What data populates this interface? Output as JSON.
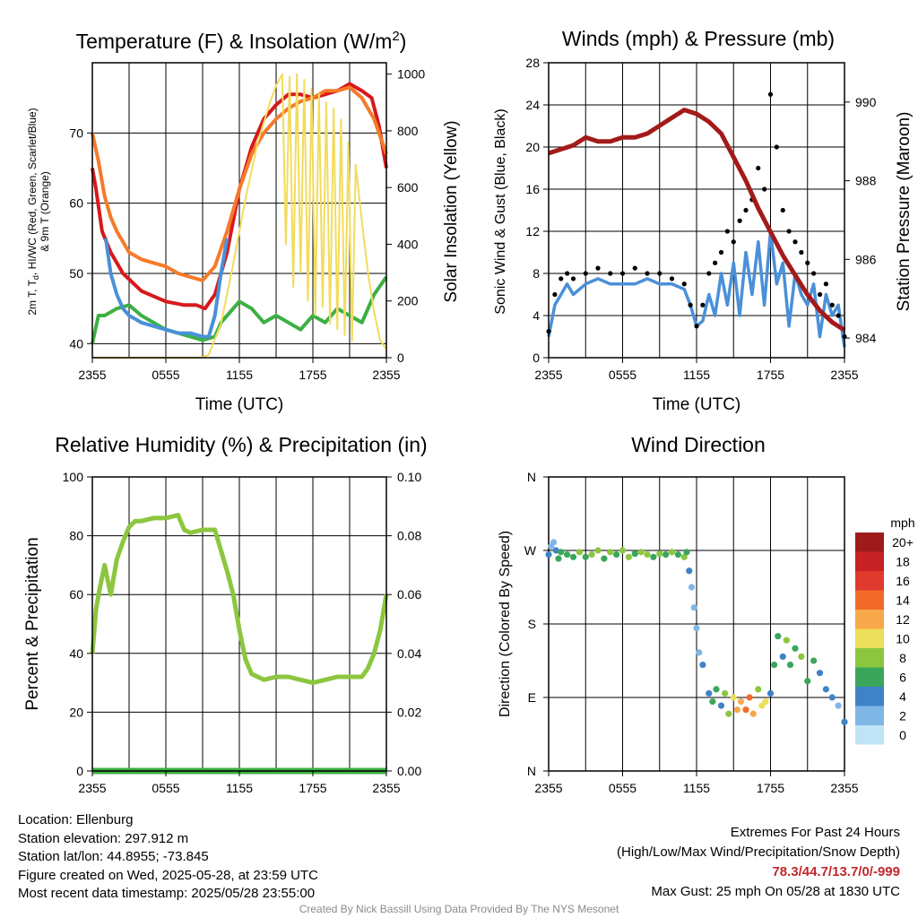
{
  "chart_data": [
    {
      "type": "line",
      "title": "Temperature (F) & Insolation (W/m²)",
      "title_main": "Temperature (F) & Insolation (W/m",
      "title_sup": "2",
      "title_end": ")",
      "xlabel": "Time (UTC)",
      "ylabel_left_line1": "2m T, T",
      "ylabel_left_sub": "d",
      "ylabel_left_line1_end": ", HI/WC (Red, Green, Scarlet/Blue)",
      "ylabel_left_line2": "& 9m T (Orange)",
      "ylabel_right": "Solar Insolation (Yellow)",
      "x_ticks": [
        "2355",
        "0555",
        "1155",
        "1755",
        "2355"
      ],
      "y_left_ticks": [
        "40",
        "50",
        "60",
        "70"
      ],
      "y_right_ticks": [
        "0",
        "200",
        "400",
        "600",
        "800",
        "1000"
      ],
      "ylim_left": [
        38,
        80
      ],
      "ylim_right": [
        0,
        1040
      ],
      "series": [
        {
          "name": "2m T (Red)",
          "color": "#d7191c",
          "x": [
            0,
            0.3,
            0.8,
            1.5,
            2.5,
            4,
            6,
            7.5,
            8.5,
            9.2,
            10,
            11,
            12,
            13,
            14,
            15,
            16,
            17,
            18,
            19,
            20,
            21,
            22,
            22.8,
            23.4,
            24
          ],
          "y": [
            65,
            62,
            56,
            53,
            50,
            47.5,
            46,
            45.5,
            45.5,
            45,
            47,
            53,
            62,
            68,
            72,
            74,
            75.5,
            75.5,
            75,
            75.5,
            76,
            77,
            76,
            75,
            71,
            65
          ]
        },
        {
          "name": "9m T (Orange)",
          "color": "#f47b2a",
          "x": [
            0,
            0.5,
            1,
            1.5,
            2,
            3,
            4,
            5,
            6,
            7,
            8,
            9,
            10,
            11,
            12,
            13,
            14,
            15,
            16,
            17,
            18,
            19,
            20,
            21,
            22,
            23,
            24
          ],
          "y": [
            70,
            66,
            61,
            58,
            56,
            53,
            52,
            51.5,
            51,
            50,
            49.5,
            49,
            51,
            56,
            62,
            67,
            70,
            72,
            73.5,
            74.5,
            75,
            76,
            76,
            76.5,
            75,
            72,
            67
          ]
        },
        {
          "name": "Td (Green)",
          "color": "#3cb043",
          "x": [
            0,
            0.5,
            1,
            2,
            3,
            4,
            5,
            6,
            7,
            8,
            9,
            10,
            10.5,
            11,
            12,
            13,
            14,
            15,
            16,
            17,
            18,
            19,
            20,
            21,
            22,
            23,
            24
          ],
          "y": [
            40,
            44,
            44,
            45,
            45.5,
            44,
            43,
            42,
            41.5,
            41,
            40.5,
            41,
            43,
            44,
            46,
            45,
            43,
            44,
            43,
            42,
            44,
            43,
            45,
            44,
            43,
            47,
            49.5
          ]
        },
        {
          "name": "HI/WC (Blue)",
          "color": "#4a90d9",
          "x": [
            1.1,
            1.5,
            2,
            2.5,
            3,
            4,
            5,
            6,
            7,
            8,
            9,
            9.5,
            10,
            10.5,
            11
          ],
          "y": [
            55,
            50,
            47,
            45,
            44,
            43,
            42.5,
            42,
            41.5,
            41.5,
            41,
            41,
            44,
            50,
            55
          ]
        },
        {
          "name": "Solar Insolation (Yellow)",
          "color": "#f2dc5d",
          "axis": "right",
          "x": [
            0,
            1,
            2,
            3,
            4,
            5,
            6,
            7,
            8,
            8.8,
            9.5,
            10.5,
            11.5,
            12.5,
            13.5,
            14.5,
            15,
            15.5,
            15.8,
            16.1,
            16.4,
            16.7,
            17,
            17.3,
            17.6,
            17.9,
            18.2,
            18.5,
            18.8,
            19.1,
            19.4,
            19.7,
            20,
            20.3,
            20.6,
            20.9,
            21.2,
            21.5,
            22,
            22.5,
            23,
            23.5,
            24
          ],
          "y": [
            0,
            0,
            0,
            0,
            0,
            0,
            0,
            0,
            0,
            0,
            10,
            120,
            330,
            560,
            760,
            900,
            960,
            1000,
            400,
            990,
            250,
            1000,
            300,
            980,
            200,
            950,
            150,
            930,
            180,
            900,
            120,
            880,
            100,
            840,
            80,
            760,
            60,
            680,
            480,
            300,
            160,
            60,
            30
          ]
        }
      ]
    },
    {
      "type": "line",
      "title": "Winds (mph) & Pressure (mb)",
      "xlabel": "Time (UTC)",
      "ylabel_left": "Sonic Wind & Gust (Blue, Black)",
      "ylabel_right": "Station Pressure (Maroon)",
      "x_ticks": [
        "2355",
        "0555",
        "1155",
        "1755",
        "2355"
      ],
      "y_left_ticks": [
        "0",
        "4",
        "8",
        "12",
        "16",
        "20",
        "24",
        "28"
      ],
      "y_right_ticks": [
        "984",
        "986",
        "988",
        "990"
      ],
      "ylim_left": [
        0,
        28
      ],
      "ylim_right": [
        983.5,
        991
      ],
      "series": [
        {
          "name": "Sonic Wind (Blue)",
          "color": "#4a90d9",
          "x": [
            0,
            0.5,
            1,
            1.5,
            2,
            3,
            4,
            5,
            6,
            7,
            8,
            9,
            10,
            11,
            11.5,
            12,
            12.5,
            13,
            13.5,
            14,
            14.5,
            15,
            15.5,
            16,
            16.5,
            17,
            17.5,
            18,
            18.5,
            19,
            19.5,
            20,
            20.5,
            21,
            21.5,
            22,
            22.5,
            23,
            23.5,
            24
          ],
          "y": [
            2,
            5,
            6,
            7,
            6,
            7,
            7.5,
            7,
            7,
            7,
            7.5,
            7,
            7,
            6.5,
            5,
            3,
            3.5,
            6,
            4,
            8,
            5,
            9,
            4,
            10,
            6,
            11,
            5,
            12,
            7,
            9,
            3,
            8,
            6,
            5,
            7,
            2,
            6,
            4,
            5,
            1
          ]
        },
        {
          "name": "Gust (Black)",
          "color": "#000000",
          "x": [
            0,
            0.5,
            1,
            1.5,
            2,
            3,
            4,
            5,
            6,
            7,
            8,
            9,
            10,
            11,
            11.5,
            12,
            12.5,
            13,
            13.5,
            14,
            14.5,
            15,
            15.5,
            16,
            16.5,
            17,
            17.5,
            18,
            18.5,
            19,
            19.5,
            20,
            20.5,
            21,
            21.5,
            22,
            22.5,
            23,
            23.5,
            24
          ],
          "y": [
            2.5,
            6,
            7.5,
            8,
            7.5,
            8,
            8.5,
            8,
            8,
            8.5,
            8,
            8,
            7.5,
            7,
            5,
            3,
            5,
            8,
            9,
            10,
            12,
            11,
            13,
            14,
            15,
            18,
            16,
            25,
            20,
            14,
            12,
            11,
            10,
            9,
            8,
            6,
            7,
            5,
            4,
            2
          ]
        },
        {
          "name": "Station Pressure (Maroon)",
          "color": "#a31a1a",
          "axis": "right",
          "x": [
            0,
            1,
            2,
            3,
            4,
            5,
            6,
            7,
            8,
            9,
            10,
            11,
            12,
            13,
            14,
            15,
            16,
            17,
            18,
            19,
            20,
            21,
            22,
            23,
            24
          ],
          "y": [
            988.7,
            988.8,
            988.9,
            989.1,
            989.0,
            989.0,
            989.1,
            989.1,
            989.2,
            989.4,
            989.6,
            989.8,
            989.7,
            989.5,
            989.2,
            988.6,
            988.0,
            987.3,
            986.7,
            986.1,
            985.6,
            985.1,
            984.7,
            984.4,
            984.2
          ]
        }
      ]
    },
    {
      "type": "line",
      "title": "Relative Humidity (%) & Precipitation (in)",
      "ylabel": "Percent & Precipitation",
      "x_ticks": [
        "2355",
        "0555",
        "1155",
        "1755",
        "2355"
      ],
      "y_left_ticks": [
        "0",
        "20",
        "40",
        "60",
        "80",
        "100"
      ],
      "y_right_ticks": [
        "0.00",
        "0.02",
        "0.04",
        "0.06",
        "0.08",
        "0.10"
      ],
      "ylim_left": [
        0,
        100
      ],
      "ylim_right": [
        0,
        0.1
      ],
      "series": [
        {
          "name": "Relative Humidity",
          "color": "#8cc63f",
          "x": [
            0,
            0.3,
            0.6,
            1,
            1.5,
            2,
            2.5,
            3,
            3.5,
            4,
            5,
            6,
            7,
            7.5,
            8,
            9,
            10,
            10.5,
            11,
            11.5,
            12,
            12.5,
            13,
            13.5,
            14,
            15,
            16,
            17,
            18,
            19,
            20,
            21,
            22,
            22.5,
            23,
            23.5,
            24
          ],
          "y": [
            40,
            55,
            62,
            70,
            60,
            72,
            78,
            83,
            85,
            85,
            86,
            86,
            87,
            82,
            81,
            82,
            82,
            75,
            68,
            60,
            48,
            38,
            33,
            32,
            31,
            32,
            32,
            31,
            30,
            31,
            32,
            32,
            32,
            35,
            40,
            48,
            60
          ]
        },
        {
          "name": "Precipitation",
          "color": "#3cb043",
          "axis": "right",
          "x": [
            0,
            24
          ],
          "y": [
            0,
            0
          ]
        }
      ]
    },
    {
      "type": "scatter",
      "title": "Wind Direction",
      "ylabel": "Direction (Colored By Speed)",
      "x_ticks": [
        "2355",
        "0555",
        "1155",
        "1755",
        "2355"
      ],
      "y_ticks": [
        "N",
        "E",
        "S",
        "W",
        "N"
      ],
      "ylim": [
        0,
        360
      ],
      "legend_title": "mph",
      "legend_labels": [
        "20+",
        "18",
        "16",
        "14",
        "12",
        "10",
        "8",
        "6",
        "4",
        "2",
        "0"
      ],
      "legend_colors": [
        "#9e1b1b",
        "#c62125",
        "#e03a2f",
        "#f26b2a",
        "#f8a84a",
        "#ecdf5b",
        "#8cc63f",
        "#3aa65b",
        "#3f83c6",
        "#7fb6e6",
        "#bfe4f6"
      ],
      "x": [
        0,
        0.2,
        0.4,
        0.6,
        0.8,
        1,
        1.5,
        2,
        2.5,
        3,
        3.5,
        4,
        4.5,
        5,
        5.5,
        6,
        6.5,
        7,
        7.5,
        8,
        8.5,
        9,
        9.5,
        10,
        10.5,
        11,
        11.2,
        11.4,
        11.6,
        11.8,
        12,
        12.2,
        12.5,
        13,
        13.3,
        13.6,
        14,
        14.3,
        14.6,
        15,
        15.3,
        15.6,
        16,
        16.3,
        16.6,
        17,
        17.3,
        17.6,
        18,
        18.3,
        18.6,
        19,
        19.3,
        19.6,
        20,
        20.5,
        21,
        21.5,
        22,
        22.5,
        23,
        23.5,
        24
      ],
      "y": [
        265,
        275,
        280,
        270,
        260,
        268,
        265,
        262,
        268,
        262,
        265,
        270,
        260,
        268,
        265,
        270,
        262,
        266,
        268,
        265,
        262,
        266,
        265,
        268,
        265,
        262,
        268,
        245,
        225,
        200,
        175,
        145,
        130,
        95,
        85,
        100,
        80,
        95,
        70,
        90,
        75,
        85,
        75,
        90,
        70,
        100,
        80,
        85,
        95,
        130,
        165,
        140,
        160,
        130,
        150,
        140,
        110,
        135,
        120,
        100,
        90,
        80,
        60
      ],
      "speeds": [
        3,
        2,
        1,
        3,
        5,
        5,
        6,
        6,
        7,
        6,
        7,
        7,
        6,
        7,
        6,
        7,
        7,
        6,
        7,
        7,
        6,
        7,
        6,
        7,
        6,
        7,
        6,
        4,
        2,
        1,
        1,
        2,
        3,
        4,
        5,
        6,
        4,
        7,
        8,
        10,
        12,
        11,
        13,
        14,
        12,
        8,
        9,
        10,
        4,
        5,
        6,
        4,
        7,
        5,
        6,
        7,
        6,
        5,
        4,
        3,
        4,
        2,
        3
      ]
    }
  ],
  "footer": {
    "location": "Location: Ellenburg",
    "elevation": "Station elevation: 297.912 m",
    "latlon": "Station lat/lon: 44.8955; -73.845",
    "created": "Figure created on Wed, 2025-05-28, at 23:59 UTC",
    "recent": "Most recent data timestamp: 2025/05/28 23:55:00",
    "extremes_title": "Extremes For Past 24 Hours",
    "extremes_legend": "(High/Low/Max Wind/Precipitation/Snow Depth)",
    "extremes_values": "78.3/44.7/13.7/0/-999",
    "max_gust": "Max Gust: 25 mph On 05/28 at 1830 UTC",
    "credit": "Created By Nick Bassill Using Data Provided By The NYS Mesonet"
  }
}
